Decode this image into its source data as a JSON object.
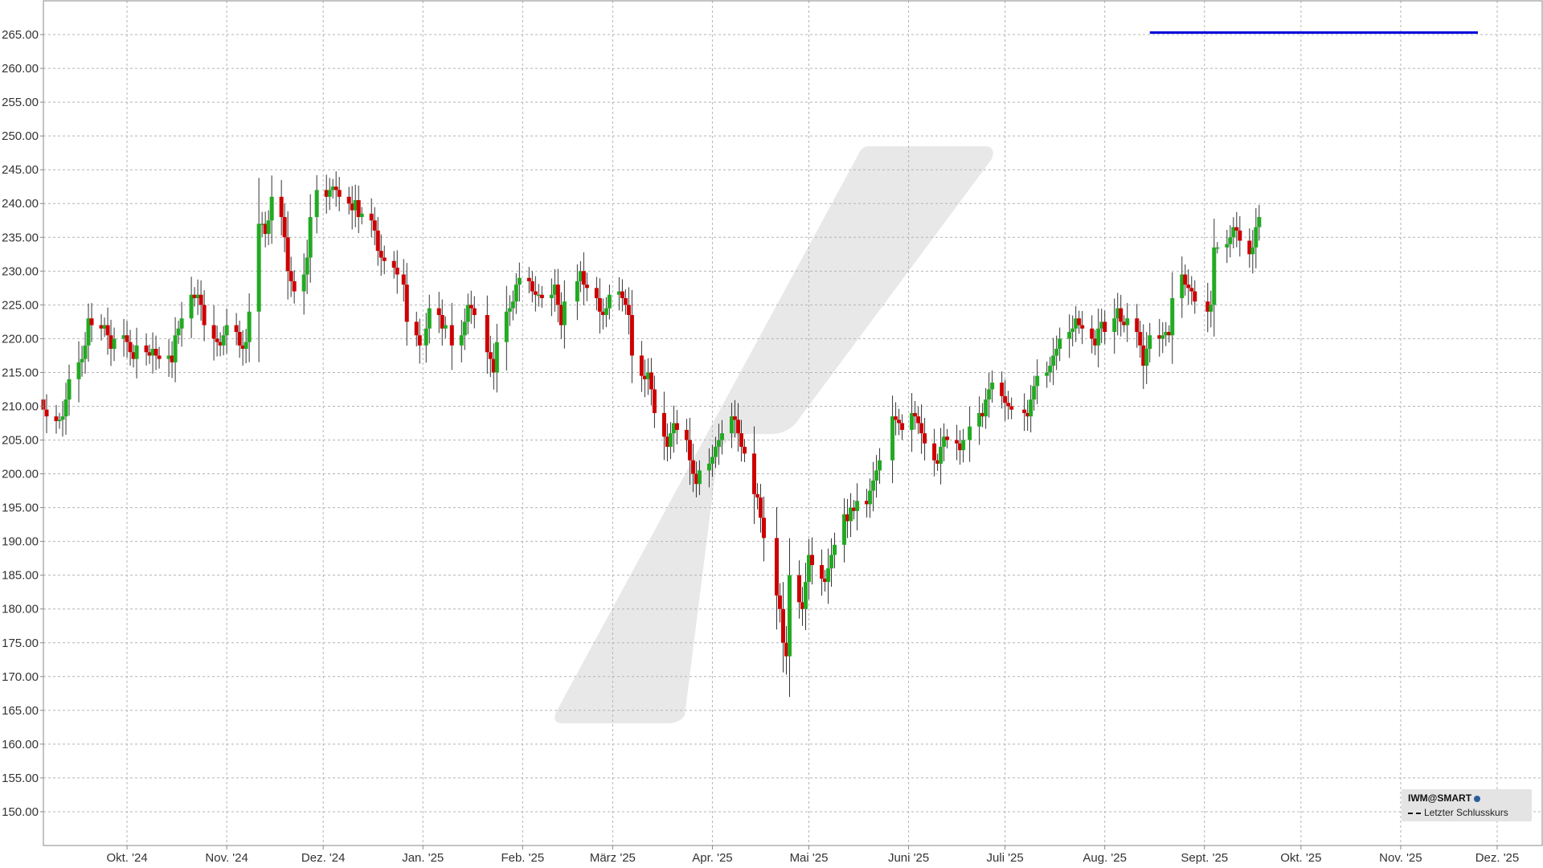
{
  "chart_data": {
    "type": "candlestick",
    "symbol_label": "IWM@SMART",
    "legend_entries": [
      "Letzter Schlusskurs"
    ],
    "ylim": [
      145,
      270
    ],
    "y_ticks": [
      "150.00",
      "155.00",
      "160.00",
      "165.00",
      "170.00",
      "175.00",
      "180.00",
      "185.00",
      "190.00",
      "195.00",
      "200.00",
      "205.00",
      "210.00",
      "215.00",
      "220.00",
      "225.00",
      "230.00",
      "235.00",
      "240.00",
      "245.00",
      "250.00",
      "255.00",
      "260.00",
      "265.00"
    ],
    "x_ticks": [
      "Okt. '24",
      "Nov. '24",
      "Dez. '24",
      "Jan. '25",
      "Feb. '25",
      "März '25",
      "Apr. '25",
      "Mai '25",
      "Juni '25",
      "Juli '25",
      "Aug. '25",
      "Sept. '25",
      "Okt. '25",
      "Nov. '25",
      "Dez. '25"
    ],
    "x_tick_dates": [
      "2024-10-01",
      "2024-11-01",
      "2024-12-01",
      "2025-01-01",
      "2025-02-01",
      "2025-03-01",
      "2025-04-01",
      "2025-05-01",
      "2025-06-01",
      "2025-07-01",
      "2025-08-01",
      "2025-09-01",
      "2025-10-01",
      "2025-11-01",
      "2025-12-01"
    ],
    "xlim": [
      "2024-09-05",
      "2025-12-15"
    ],
    "grid": true,
    "level_line": {
      "value": 265.3,
      "from": "2025-08-15",
      "to": "2025-11-25",
      "color": "#0000dd"
    },
    "colors": {
      "up": "#22aa22",
      "down": "#cc0000",
      "grid": "#b4b4b4",
      "watermark": "#e5e5e5"
    },
    "series": [
      {
        "d": "2024-09-05",
        "c": 209.5
      },
      {
        "d": "2024-09-06",
        "c": 208.5
      },
      {
        "d": "2024-09-09",
        "c": 207.8
      },
      {
        "d": "2024-09-10",
        "c": 208.0
      },
      {
        "d": "2024-09-11",
        "c": 208.5
      },
      {
        "d": "2024-09-12",
        "c": 211.0
      },
      {
        "d": "2024-09-13",
        "c": 214.0
      },
      {
        "d": "2024-09-16",
        "c": 216.5
      },
      {
        "d": "2024-09-17",
        "c": 217.0
      },
      {
        "d": "2024-09-18",
        "c": 219.0
      },
      {
        "d": "2024-09-19",
        "c": 223.0
      },
      {
        "d": "2024-09-20",
        "c": 222.0
      },
      {
        "d": "2024-09-23",
        "c": 221.5
      },
      {
        "d": "2024-09-24",
        "c": 222.0
      },
      {
        "d": "2024-09-25",
        "c": 220.5
      },
      {
        "d": "2024-09-26",
        "c": 218.5
      },
      {
        "d": "2024-09-27",
        "c": 220.0
      },
      {
        "d": "2024-09-30",
        "c": 220.5
      },
      {
        "d": "2024-10-01",
        "c": 219.5
      },
      {
        "d": "2024-10-02",
        "c": 218.0
      },
      {
        "d": "2024-10-03",
        "c": 217.0
      },
      {
        "d": "2024-10-04",
        "c": 219.0
      },
      {
        "d": "2024-10-07",
        "c": 218.0
      },
      {
        "d": "2024-10-08",
        "c": 217.5
      },
      {
        "d": "2024-10-09",
        "c": 218.5
      },
      {
        "d": "2024-10-10",
        "c": 217.5
      },
      {
        "d": "2024-10-11",
        "c": 217.0
      },
      {
        "d": "2024-10-14",
        "c": 217.5
      },
      {
        "d": "2024-10-15",
        "c": 216.5
      },
      {
        "d": "2024-10-16",
        "c": 220.5
      },
      {
        "d": "2024-10-17",
        "c": 221.5
      },
      {
        "d": "2024-10-18",
        "c": 223.0
      },
      {
        "d": "2024-10-21",
        "c": 226.5
      },
      {
        "d": "2024-10-22",
        "c": 226.0
      },
      {
        "d": "2024-10-23",
        "c": 226.5
      },
      {
        "d": "2024-10-24",
        "c": 225.0
      },
      {
        "d": "2024-10-25",
        "c": 222.0
      },
      {
        "d": "2024-10-28",
        "c": 220.0
      },
      {
        "d": "2024-10-29",
        "c": 219.5
      },
      {
        "d": "2024-10-30",
        "c": 219.0
      },
      {
        "d": "2024-10-31",
        "c": 220.5
      },
      {
        "d": "2024-11-01",
        "c": 222.0
      },
      {
        "d": "2024-11-04",
        "c": 221.0
      },
      {
        "d": "2024-11-05",
        "c": 219.0
      },
      {
        "d": "2024-11-06",
        "c": 218.5
      },
      {
        "d": "2024-11-07",
        "c": 219.5
      },
      {
        "d": "2024-11-08",
        "c": 224.0
      },
      {
        "d": "2024-11-11",
        "c": 237.0
      },
      {
        "d": "2024-11-12",
        "c": 237.0
      },
      {
        "d": "2024-11-13",
        "c": 235.5
      },
      {
        "d": "2024-11-14",
        "c": 237.5
      },
      {
        "d": "2024-11-15",
        "c": 241.0
      },
      {
        "d": "2024-11-18",
        "c": 238.0
      },
      {
        "d": "2024-11-19",
        "c": 235.0
      },
      {
        "d": "2024-11-20",
        "c": 230.0
      },
      {
        "d": "2024-11-21",
        "c": 228.5
      },
      {
        "d": "2024-11-22",
        "c": 227.0
      },
      {
        "d": "2024-11-25",
        "c": 229.5
      },
      {
        "d": "2024-11-26",
        "c": 232.0
      },
      {
        "d": "2024-11-27",
        "c": 238.0
      },
      {
        "d": "2024-11-29",
        "c": 242.0
      },
      {
        "d": "2024-12-02",
        "c": 241.0
      },
      {
        "d": "2024-12-03",
        "c": 242.0
      },
      {
        "d": "2024-12-04",
        "c": 242.5
      },
      {
        "d": "2024-12-05",
        "c": 242.0
      },
      {
        "d": "2024-12-06",
        "c": 241.0
      },
      {
        "d": "2024-12-09",
        "c": 240.0
      },
      {
        "d": "2024-12-10",
        "c": 239.0
      },
      {
        "d": "2024-12-11",
        "c": 240.5
      },
      {
        "d": "2024-12-12",
        "c": 238.0
      },
      {
        "d": "2024-12-13",
        "c": 238.5
      },
      {
        "d": "2024-12-16",
        "c": 237.5
      },
      {
        "d": "2024-12-17",
        "c": 236.0
      },
      {
        "d": "2024-12-18",
        "c": 233.0
      },
      {
        "d": "2024-12-19",
        "c": 232.0
      },
      {
        "d": "2024-12-20",
        "c": 231.5
      },
      {
        "d": "2024-12-23",
        "c": 230.5
      },
      {
        "d": "2024-12-24",
        "c": 229.5
      },
      {
        "d": "2024-12-26",
        "c": 228.0
      },
      {
        "d": "2024-12-27",
        "c": 222.5
      },
      {
        "d": "2024-12-30",
        "c": 220.5
      },
      {
        "d": "2024-12-31",
        "c": 219.0
      },
      {
        "d": "2025-01-02",
        "c": 221.5
      },
      {
        "d": "2025-01-03",
        "c": 224.5
      },
      {
        "d": "2025-01-06",
        "c": 223.5
      },
      {
        "d": "2025-01-07",
        "c": 221.5
      },
      {
        "d": "2025-01-08",
        "c": 222.0
      },
      {
        "d": "2025-01-10",
        "c": 219.0
      },
      {
        "d": "2025-01-13",
        "c": 220.5
      },
      {
        "d": "2025-01-14",
        "c": 222.5
      },
      {
        "d": "2025-01-15",
        "c": 225.0
      },
      {
        "d": "2025-01-16",
        "c": 224.5
      },
      {
        "d": "2025-01-17",
        "c": 223.5
      },
      {
        "d": "2025-01-21",
        "c": 218.0
      },
      {
        "d": "2025-01-22",
        "c": 217.0
      },
      {
        "d": "2025-01-23",
        "c": 215.0
      },
      {
        "d": "2025-01-24",
        "c": 219.5
      },
      {
        "d": "2025-01-27",
        "c": 224.0
      },
      {
        "d": "2025-01-28",
        "c": 224.5
      },
      {
        "d": "2025-01-29",
        "c": 225.5
      },
      {
        "d": "2025-01-30",
        "c": 228.0
      },
      {
        "d": "2025-01-31",
        "c": 229.0
      },
      {
        "d": "2025-02-03",
        "c": 228.5
      },
      {
        "d": "2025-02-04",
        "c": 227.0
      },
      {
        "d": "2025-02-05",
        "c": 226.5
      },
      {
        "d": "2025-02-06",
        "c": 226.5
      },
      {
        "d": "2025-02-07",
        "c": 226.0
      },
      {
        "d": "2025-02-10",
        "c": 226.5
      },
      {
        "d": "2025-02-11",
        "c": 228.0
      },
      {
        "d": "2025-02-12",
        "c": 225.0
      },
      {
        "d": "2025-02-13",
        "c": 222.0
      },
      {
        "d": "2025-02-14",
        "c": 225.5
      },
      {
        "d": "2025-02-18",
        "c": 228.5
      },
      {
        "d": "2025-02-19",
        "c": 230.0
      },
      {
        "d": "2025-02-20",
        "c": 228.0
      },
      {
        "d": "2025-02-21",
        "c": 227.5
      },
      {
        "d": "2025-02-24",
        "c": 226.0
      },
      {
        "d": "2025-02-25",
        "c": 224.0
      },
      {
        "d": "2025-02-26",
        "c": 223.5
      },
      {
        "d": "2025-02-27",
        "c": 224.5
      },
      {
        "d": "2025-02-28",
        "c": 226.5
      },
      {
        "d": "2025-03-03",
        "c": 227.0
      },
      {
        "d": "2025-03-04",
        "c": 226.0
      },
      {
        "d": "2025-03-05",
        "c": 225.0
      },
      {
        "d": "2025-03-06",
        "c": 223.5
      },
      {
        "d": "2025-03-07",
        "c": 217.5
      },
      {
        "d": "2025-03-10",
        "c": 214.5
      },
      {
        "d": "2025-03-11",
        "c": 214.0
      },
      {
        "d": "2025-03-12",
        "c": 215.0
      },
      {
        "d": "2025-03-13",
        "c": 212.5
      },
      {
        "d": "2025-03-14",
        "c": 209.0
      },
      {
        "d": "2025-03-17",
        "c": 205.5
      },
      {
        "d": "2025-03-18",
        "c": 204.0
      },
      {
        "d": "2025-03-19",
        "c": 206.0
      },
      {
        "d": "2025-03-20",
        "c": 207.5
      },
      {
        "d": "2025-03-21",
        "c": 206.5
      },
      {
        "d": "2025-03-24",
        "c": 205.0
      },
      {
        "d": "2025-03-25",
        "c": 202.0
      },
      {
        "d": "2025-03-26",
        "c": 200.0
      },
      {
        "d": "2025-03-27",
        "c": 198.5
      },
      {
        "d": "2025-03-28",
        "c": 200.5
      },
      {
        "d": "2025-03-31",
        "c": 201.5
      },
      {
        "d": "2025-04-01",
        "c": 202.5
      },
      {
        "d": "2025-04-02",
        "c": 204.0
      },
      {
        "d": "2025-04-03",
        "c": 205.0
      },
      {
        "d": "2025-04-04",
        "c": 206.0
      },
      {
        "d": "2025-04-07",
        "c": 208.5
      },
      {
        "d": "2025-04-08",
        "c": 208.0
      },
      {
        "d": "2025-04-09",
        "c": 206.0
      },
      {
        "d": "2025-04-10",
        "c": 204.0
      },
      {
        "d": "2025-04-11",
        "c": 203.0
      },
      {
        "d": "2025-04-14",
        "c": 197.0
      },
      {
        "d": "2025-04-15",
        "c": 196.5
      },
      {
        "d": "2025-04-16",
        "c": 193.5
      },
      {
        "d": "2025-04-17",
        "c": 190.5
      },
      {
        "d": "2025-04-21",
        "c": 182.0
      },
      {
        "d": "2025-04-22",
        "c": 180.0
      },
      {
        "d": "2025-04-23",
        "c": 175.0
      },
      {
        "d": "2025-04-24",
        "c": 173.0
      },
      {
        "d": "2025-04-25",
        "c": 185.0
      },
      {
        "d": "2025-04-28",
        "c": 181.0
      },
      {
        "d": "2025-04-29",
        "c": 180.0
      },
      {
        "d": "2025-04-30",
        "c": 184.0
      },
      {
        "d": "2025-05-01",
        "c": 188.0
      },
      {
        "d": "2025-05-02",
        "c": 186.5
      },
      {
        "d": "2025-05-05",
        "c": 184.5
      },
      {
        "d": "2025-05-06",
        "c": 184.0
      },
      {
        "d": "2025-05-07",
        "c": 186.0
      },
      {
        "d": "2025-05-08",
        "c": 188.0
      },
      {
        "d": "2025-05-09",
        "c": 189.5
      },
      {
        "d": "2025-05-12",
        "c": 194.0
      },
      {
        "d": "2025-05-13",
        "c": 193.0
      },
      {
        "d": "2025-05-14",
        "c": 195.0
      },
      {
        "d": "2025-05-15",
        "c": 194.5
      },
      {
        "d": "2025-05-16",
        "c": 196.0
      },
      {
        "d": "2025-05-19",
        "c": 195.5
      },
      {
        "d": "2025-05-20",
        "c": 197.5
      },
      {
        "d": "2025-05-21",
        "c": 199.0
      },
      {
        "d": "2025-05-22",
        "c": 200.5
      },
      {
        "d": "2025-05-23",
        "c": 202.0
      },
      {
        "d": "2025-05-27",
        "c": 208.5
      },
      {
        "d": "2025-05-28",
        "c": 208.0
      },
      {
        "d": "2025-05-29",
        "c": 207.5
      },
      {
        "d": "2025-05-30",
        "c": 206.5
      },
      {
        "d": "2025-06-02",
        "c": 209.0
      },
      {
        "d": "2025-06-03",
        "c": 208.5
      },
      {
        "d": "2025-06-04",
        "c": 207.5
      },
      {
        "d": "2025-06-05",
        "c": 206.0
      },
      {
        "d": "2025-06-06",
        "c": 204.5
      },
      {
        "d": "2025-06-09",
        "c": 202.0
      },
      {
        "d": "2025-06-10",
        "c": 201.5
      },
      {
        "d": "2025-06-11",
        "c": 204.0
      },
      {
        "d": "2025-06-12",
        "c": 205.5
      },
      {
        "d": "2025-06-13",
        "c": 205.0
      },
      {
        "d": "2025-06-16",
        "c": 204.5
      },
      {
        "d": "2025-06-17",
        "c": 203.5
      },
      {
        "d": "2025-06-18",
        "c": 205.0
      },
      {
        "d": "2025-06-20",
        "c": 207.0
      },
      {
        "d": "2025-06-23",
        "c": 209.0
      },
      {
        "d": "2025-06-24",
        "c": 208.5
      },
      {
        "d": "2025-06-25",
        "c": 211.0
      },
      {
        "d": "2025-06-26",
        "c": 212.5
      },
      {
        "d": "2025-06-27",
        "c": 213.5
      },
      {
        "d": "2025-06-30",
        "c": 211.5
      },
      {
        "d": "2025-07-01",
        "c": 210.5
      },
      {
        "d": "2025-07-02",
        "c": 210.0
      },
      {
        "d": "2025-07-03",
        "c": 209.5
      },
      {
        "d": "2025-07-07",
        "c": 209.0
      },
      {
        "d": "2025-07-08",
        "c": 208.5
      },
      {
        "d": "2025-07-09",
        "c": 211.0
      },
      {
        "d": "2025-07-10",
        "c": 213.0
      },
      {
        "d": "2025-07-11",
        "c": 214.5
      },
      {
        "d": "2025-07-14",
        "c": 215.0
      },
      {
        "d": "2025-07-15",
        "c": 216.0
      },
      {
        "d": "2025-07-16",
        "c": 217.5
      },
      {
        "d": "2025-07-17",
        "c": 218.5
      },
      {
        "d": "2025-07-18",
        "c": 220.0
      },
      {
        "d": "2025-07-21",
        "c": 221.0
      },
      {
        "d": "2025-07-22",
        "c": 221.5
      },
      {
        "d": "2025-07-23",
        "c": 223.0
      },
      {
        "d": "2025-07-24",
        "c": 222.0
      },
      {
        "d": "2025-07-25",
        "c": 221.5
      },
      {
        "d": "2025-07-28",
        "c": 220.0
      },
      {
        "d": "2025-07-29",
        "c": 219.0
      },
      {
        "d": "2025-07-30",
        "c": 221.5
      },
      {
        "d": "2025-07-31",
        "c": 222.5
      },
      {
        "d": "2025-08-01",
        "c": 221.0
      },
      {
        "d": "2025-08-04",
        "c": 223.0
      },
      {
        "d": "2025-08-05",
        "c": 224.5
      },
      {
        "d": "2025-08-06",
        "c": 222.5
      },
      {
        "d": "2025-08-07",
        "c": 222.0
      },
      {
        "d": "2025-08-08",
        "c": 223.0
      },
      {
        "d": "2025-08-11",
        "c": 221.0
      },
      {
        "d": "2025-08-12",
        "c": 219.0
      },
      {
        "d": "2025-08-13",
        "c": 216.0
      },
      {
        "d": "2025-08-14",
        "c": 218.5
      },
      {
        "d": "2025-08-15",
        "c": 220.5
      },
      {
        "d": "2025-08-18",
        "c": 220.0
      },
      {
        "d": "2025-08-19",
        "c": 220.5
      },
      {
        "d": "2025-08-20",
        "c": 221.0
      },
      {
        "d": "2025-08-21",
        "c": 220.5
      },
      {
        "d": "2025-08-22",
        "c": 226.0
      },
      {
        "d": "2025-08-25",
        "c": 229.5
      },
      {
        "d": "2025-08-26",
        "c": 228.0
      },
      {
        "d": "2025-08-27",
        "c": 227.5
      },
      {
        "d": "2025-08-28",
        "c": 227.0
      },
      {
        "d": "2025-08-29",
        "c": 225.5
      },
      {
        "d": "2025-09-02",
        "c": 224.0
      },
      {
        "d": "2025-09-03",
        "c": 225.0
      },
      {
        "d": "2025-09-04",
        "c": 233.5
      },
      {
        "d": "2025-09-05",
        "c": 233.5
      },
      {
        "d": "2025-09-08",
        "c": 234.0
      },
      {
        "d": "2025-09-09",
        "c": 235.0
      },
      {
        "d": "2025-09-10",
        "c": 236.5
      },
      {
        "d": "2025-09-11",
        "c": 236.0
      },
      {
        "d": "2025-09-12",
        "c": 234.5
      },
      {
        "d": "2025-09-15",
        "c": 232.5
      },
      {
        "d": "2025-09-16",
        "c": 233.5
      },
      {
        "d": "2025-09-17",
        "c": 236.5
      },
      {
        "d": "2025-09-18",
        "c": 238.0
      }
    ]
  }
}
